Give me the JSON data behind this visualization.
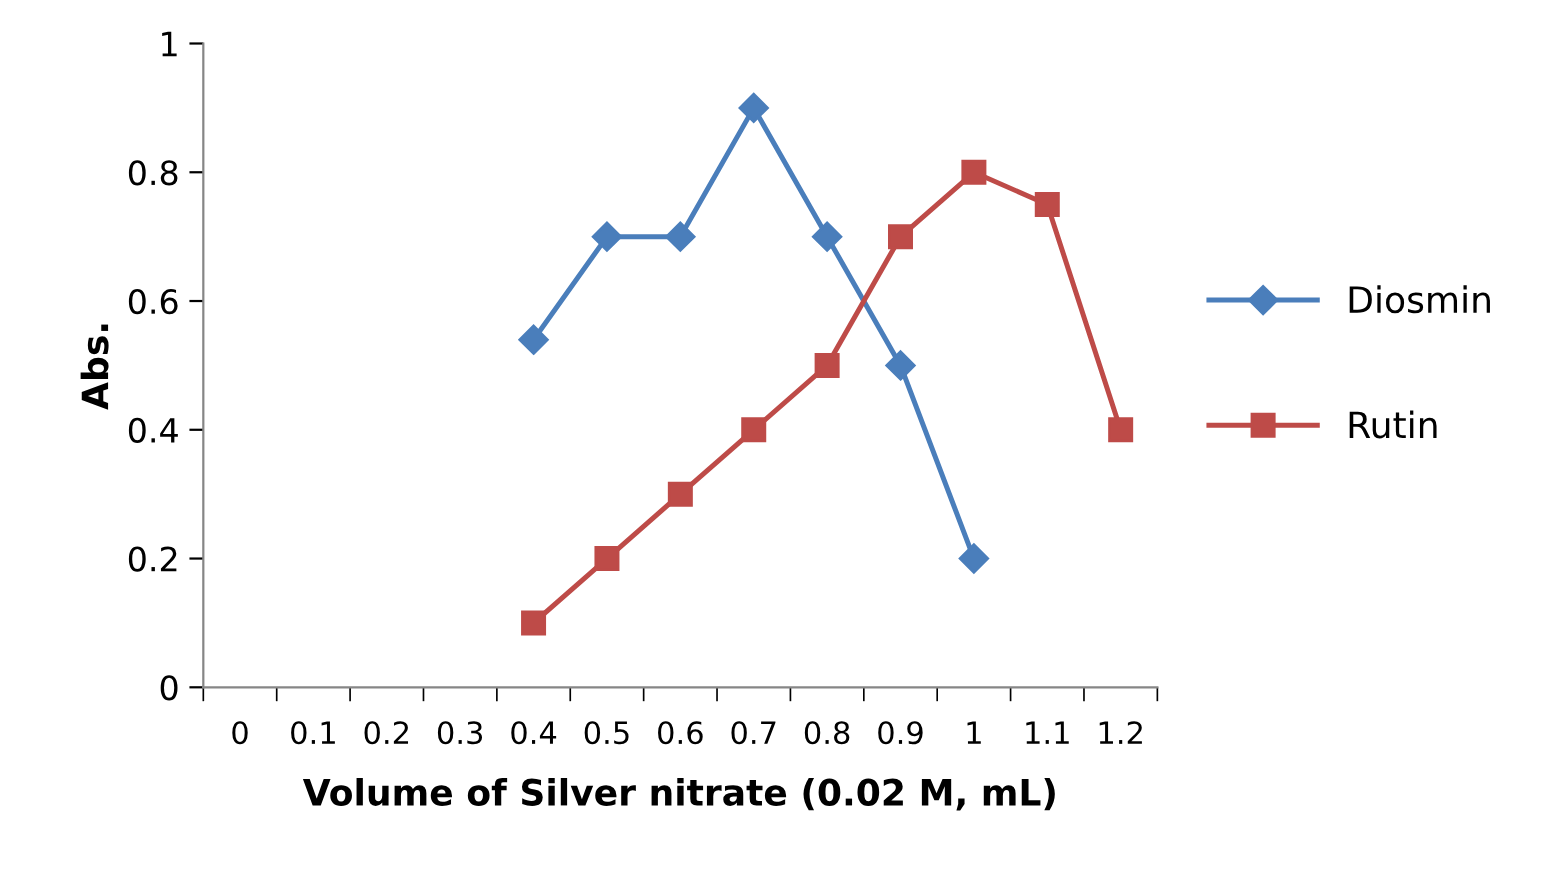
{
  "chart_data": {
    "type": "line",
    "xlabel": "Volume of Silver nitrate (0.02 M, mL)",
    "ylabel": "Abs.",
    "categories": [
      "0",
      "0.1",
      "0.2",
      "0.3",
      "0.4",
      "0.5",
      "0.6",
      "0.7",
      "0.8",
      "0.9",
      "1",
      "1.1",
      "1.2"
    ],
    "series": [
      {
        "name": "Diosmin",
        "color": "#4a7ebb",
        "marker": "diamond",
        "values": [
          null,
          null,
          null,
          null,
          0.54,
          0.7,
          0.7,
          0.9,
          0.7,
          0.5,
          0.2,
          null,
          null
        ]
      },
      {
        "name": "Rutin",
        "color": "#be4b48",
        "marker": "square",
        "values": [
          null,
          null,
          null,
          null,
          0.1,
          0.2,
          0.3,
          0.4,
          0.5,
          0.7,
          0.8,
          0.75,
          0.4
        ]
      }
    ],
    "ylim": [
      0,
      1
    ],
    "yticks": [
      0,
      0.2,
      0.4,
      0.6,
      0.8,
      1
    ],
    "grid": false,
    "legend": "right",
    "line_style": "solid"
  }
}
